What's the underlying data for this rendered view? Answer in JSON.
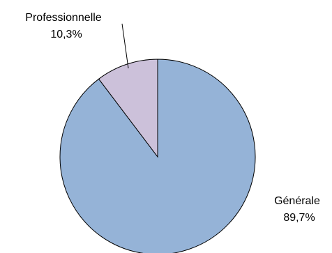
{
  "chart_data": {
    "type": "pie",
    "slices": [
      {
        "label": "Générale",
        "value": 89.7,
        "value_label": "89,7%",
        "color": "#95b3d7"
      },
      {
        "label": "Professionnelle",
        "value": 10.3,
        "value_label": "10,3%",
        "color": "#ccc1da"
      }
    ],
    "start": "12 o'clock",
    "direction": "counterclockwise",
    "outline_color": "#000000"
  }
}
